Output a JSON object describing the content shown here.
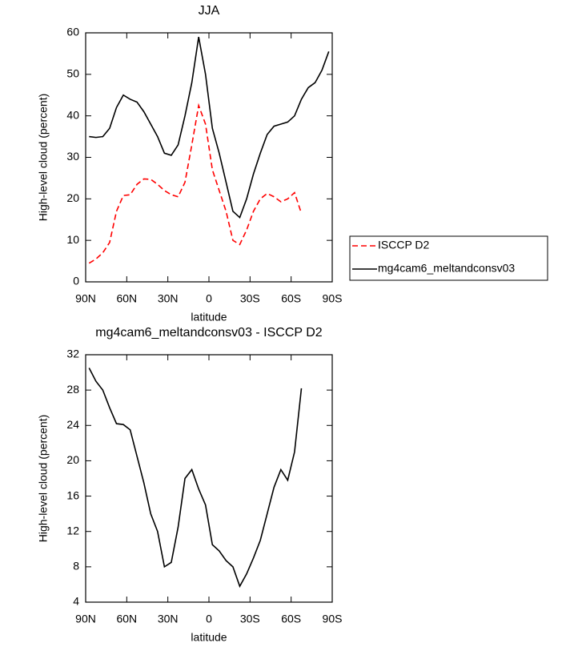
{
  "chart_data": [
    {
      "type": "line",
      "title": "JJA",
      "x_label": "latitude",
      "y_label": "High-level cloud (percent)",
      "x": [
        87.5,
        82.5,
        77.5,
        72.5,
        67.5,
        62.5,
        57.5,
        52.5,
        47.5,
        42.5,
        37.5,
        32.5,
        27.5,
        22.5,
        17.5,
        12.5,
        7.5,
        2.5,
        -2.5,
        -7.5,
        -12.5,
        -17.5,
        -22.5,
        -27.5,
        -32.5,
        -37.5,
        -42.5,
        -47.5,
        -52.5,
        -57.5,
        -62.5,
        -67.5,
        -72.5,
        -77.5,
        -82.5,
        -87.5
      ],
      "series": [
        {
          "name": "ISCCP D2",
          "color": "#ff0000",
          "dash": "dashed",
          "values": [
            4.5,
            5.5,
            7,
            9.5,
            17,
            20.8,
            21,
            23.5,
            24.8,
            24.7,
            23.5,
            22,
            21,
            20.5,
            24,
            33,
            42.5,
            38,
            27,
            22,
            17,
            10,
            9,
            12.5,
            17,
            20,
            21.3,
            20.5,
            19.3,
            20,
            21.5,
            16.5,
            null,
            null,
            null,
            null
          ]
        },
        {
          "name": "mg4cam6_meltandconsv03",
          "color": "#000000",
          "dash": "solid",
          "values": [
            35,
            34.8,
            35,
            37,
            42,
            45,
            44,
            43.3,
            41,
            38,
            35,
            31,
            30.5,
            33,
            40,
            48,
            59,
            50,
            37,
            31,
            24,
            17,
            15.5,
            20,
            26,
            31,
            35.5,
            37.5,
            38,
            38.5,
            40,
            44,
            46.8,
            48,
            51,
            55.5
          ]
        }
      ],
      "xlim": [
        90,
        -90
      ],
      "xticks": [
        {
          "value": 90,
          "label": "90N"
        },
        {
          "value": 60,
          "label": "60N"
        },
        {
          "value": 30,
          "label": "30N"
        },
        0,
        {
          "value": -30,
          "label": "30S"
        },
        {
          "value": -60,
          "label": "60S"
        },
        {
          "value": -90,
          "label": "90S"
        }
      ],
      "ylim": [
        0,
        60
      ],
      "yticks": [
        0,
        10,
        20,
        30,
        40,
        50,
        60
      ],
      "legend": "right"
    },
    {
      "type": "line",
      "title": "mg4cam6_meltandconsv03 - ISCCP D2",
      "x_label": "latitude",
      "y_label": "High-level cloud (percent)",
      "x": [
        87.5,
        82.5,
        77.5,
        72.5,
        67.5,
        62.5,
        57.5,
        52.5,
        47.5,
        42.5,
        37.5,
        32.5,
        27.5,
        22.5,
        17.5,
        12.5,
        7.5,
        2.5,
        -2.5,
        -7.5,
        -12.5,
        -17.5,
        -22.5,
        -27.5,
        -32.5,
        -37.5,
        -42.5,
        -47.5,
        -52.5,
        -57.5,
        -62.5,
        -67.5,
        -72.5,
        -77.5,
        -82.5,
        -87.5
      ],
      "series": [
        {
          "color": "#000000",
          "dash": "solid",
          "values": [
            30.5,
            29,
            28,
            26,
            24.2,
            24.1,
            23.5,
            20.5,
            17.5,
            14,
            12,
            8,
            8.5,
            12.5,
            18,
            19,
            16.8,
            15,
            10.5,
            9.8,
            8.7,
            8,
            5.8,
            7.2,
            9,
            11,
            14,
            17,
            19,
            17.8,
            21,
            28.2,
            null,
            null,
            null,
            null
          ]
        }
      ],
      "xlim": [
        90,
        -90
      ],
      "xticks": [
        {
          "value": 90,
          "label": "90N"
        },
        {
          "value": 60,
          "label": "60N"
        },
        {
          "value": 30,
          "label": "30N"
        },
        0,
        {
          "value": -30,
          "label": "30S"
        },
        {
          "value": -60,
          "label": "60S"
        },
        {
          "value": -90,
          "label": "90S"
        }
      ],
      "ylim": [
        4,
        32
      ],
      "yticks": [
        4,
        8,
        12,
        16,
        20,
        24,
        28,
        32
      ]
    }
  ]
}
